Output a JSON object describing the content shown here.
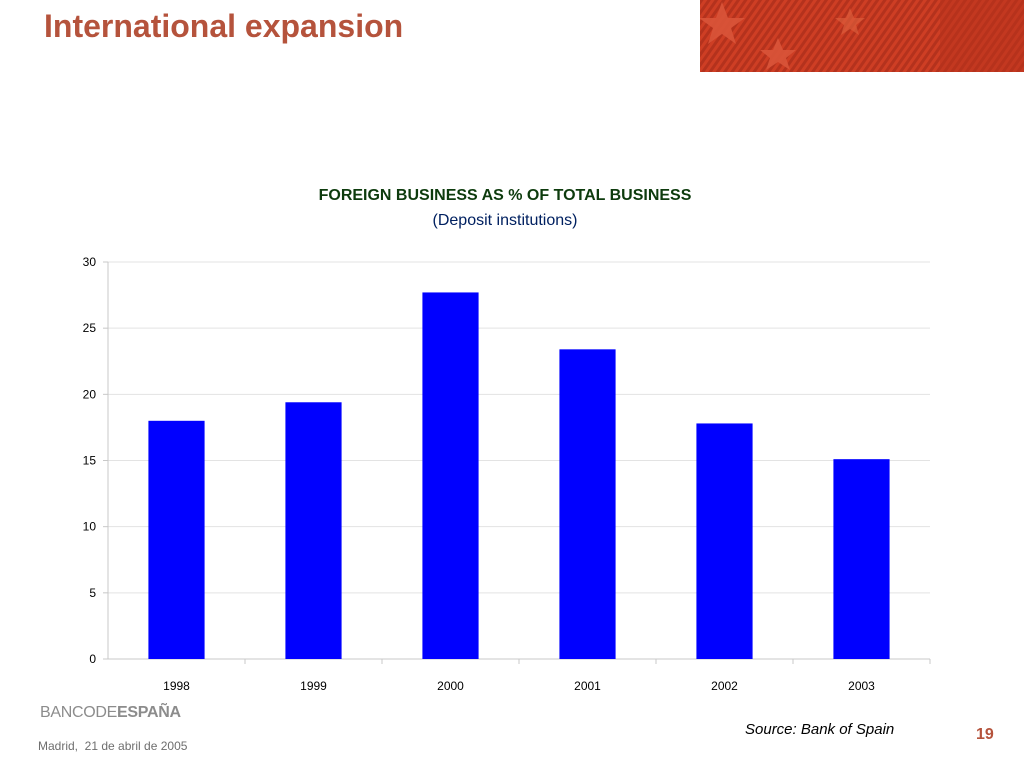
{
  "slide": {
    "title": "International expansion",
    "page_number": "19",
    "source": "Source: Bank of Spain",
    "footer_date": "Madrid,  21 de abril de 2005",
    "logo": {
      "part1": "BANCO",
      "part2": "DE",
      "part3": "ESPAÑA",
      "text_color": "#8c8c8c"
    },
    "title_color": "#b5533c",
    "banner": {
      "icon": "star-flag-banner",
      "colors": [
        "#b0311f",
        "#d6472e",
        "#8a2416"
      ]
    }
  },
  "chart_data": {
    "type": "bar",
    "title": "FOREIGN BUSINESS AS % OF TOTAL BUSINESS",
    "subtitle": "(Deposit institutions)",
    "categories": [
      "1998",
      "1999",
      "2000",
      "2001",
      "2002",
      "2003"
    ],
    "values": [
      18.0,
      19.4,
      27.7,
      23.4,
      17.8,
      15.1
    ],
    "ylim": [
      0,
      30
    ],
    "yticks": [
      "0",
      "5",
      "10",
      "15",
      "20",
      "25",
      "30"
    ],
    "xlabel": "",
    "ylabel": "",
    "grid": true,
    "bar_color": "#0000ff",
    "legend": "none"
  }
}
